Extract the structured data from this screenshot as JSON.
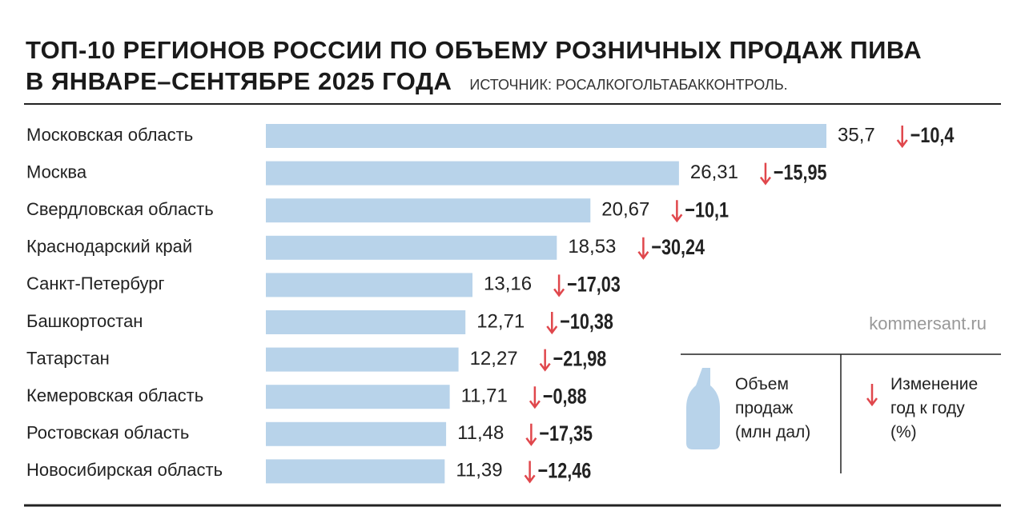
{
  "chart_data": {
    "type": "bar",
    "title": [
      "ТОП-10 РЕГИОНОВ РОССИИ ПО ОБЪЕМУ РОЗНИЧНЫХ ПРОДАЖ ПИВА",
      "В ЯНВАРЕ–СЕНТЯБРЕ 2025 ГОДА"
    ],
    "source": "ИСТОЧНИК: РОСАЛКОГОЛЬТАБАККОНТРОЛЬ.",
    "credit": "kommersant.ru",
    "categories": [
      "Московская область",
      "Москва",
      "Свердловская область",
      "Краснодарский край",
      "Санкт-Петербург",
      "Башкортостан",
      "Татарстан",
      "Кемеровская область",
      "Ростовская область",
      "Новосибирская область"
    ],
    "series": [
      {
        "name": "Объем продаж (млн дал)",
        "color": "#b8d3ea",
        "values": [
          35.7,
          26.31,
          20.67,
          18.53,
          13.16,
          12.71,
          12.27,
          11.71,
          11.48,
          11.39
        ],
        "value_labels": [
          "35,7",
          "26,31",
          "20,67",
          "18,53",
          "13,16",
          "12,71",
          "12,27",
          "11,71",
          "11,48",
          "11,39"
        ]
      },
      {
        "name": "Изменение год к году (%)",
        "color": "#e0474c",
        "values": [
          -10.4,
          -15.95,
          -10.1,
          -30.24,
          -17.03,
          -10.38,
          -21.98,
          -0.88,
          -17.35,
          -12.46
        ],
        "value_labels": [
          "−10,4",
          "−15,95",
          "−10,1",
          "−30,24",
          "−17,03",
          "−10,38",
          "−21,98",
          "−0,88",
          "−17,35",
          "−12,46"
        ]
      }
    ]
  }
}
